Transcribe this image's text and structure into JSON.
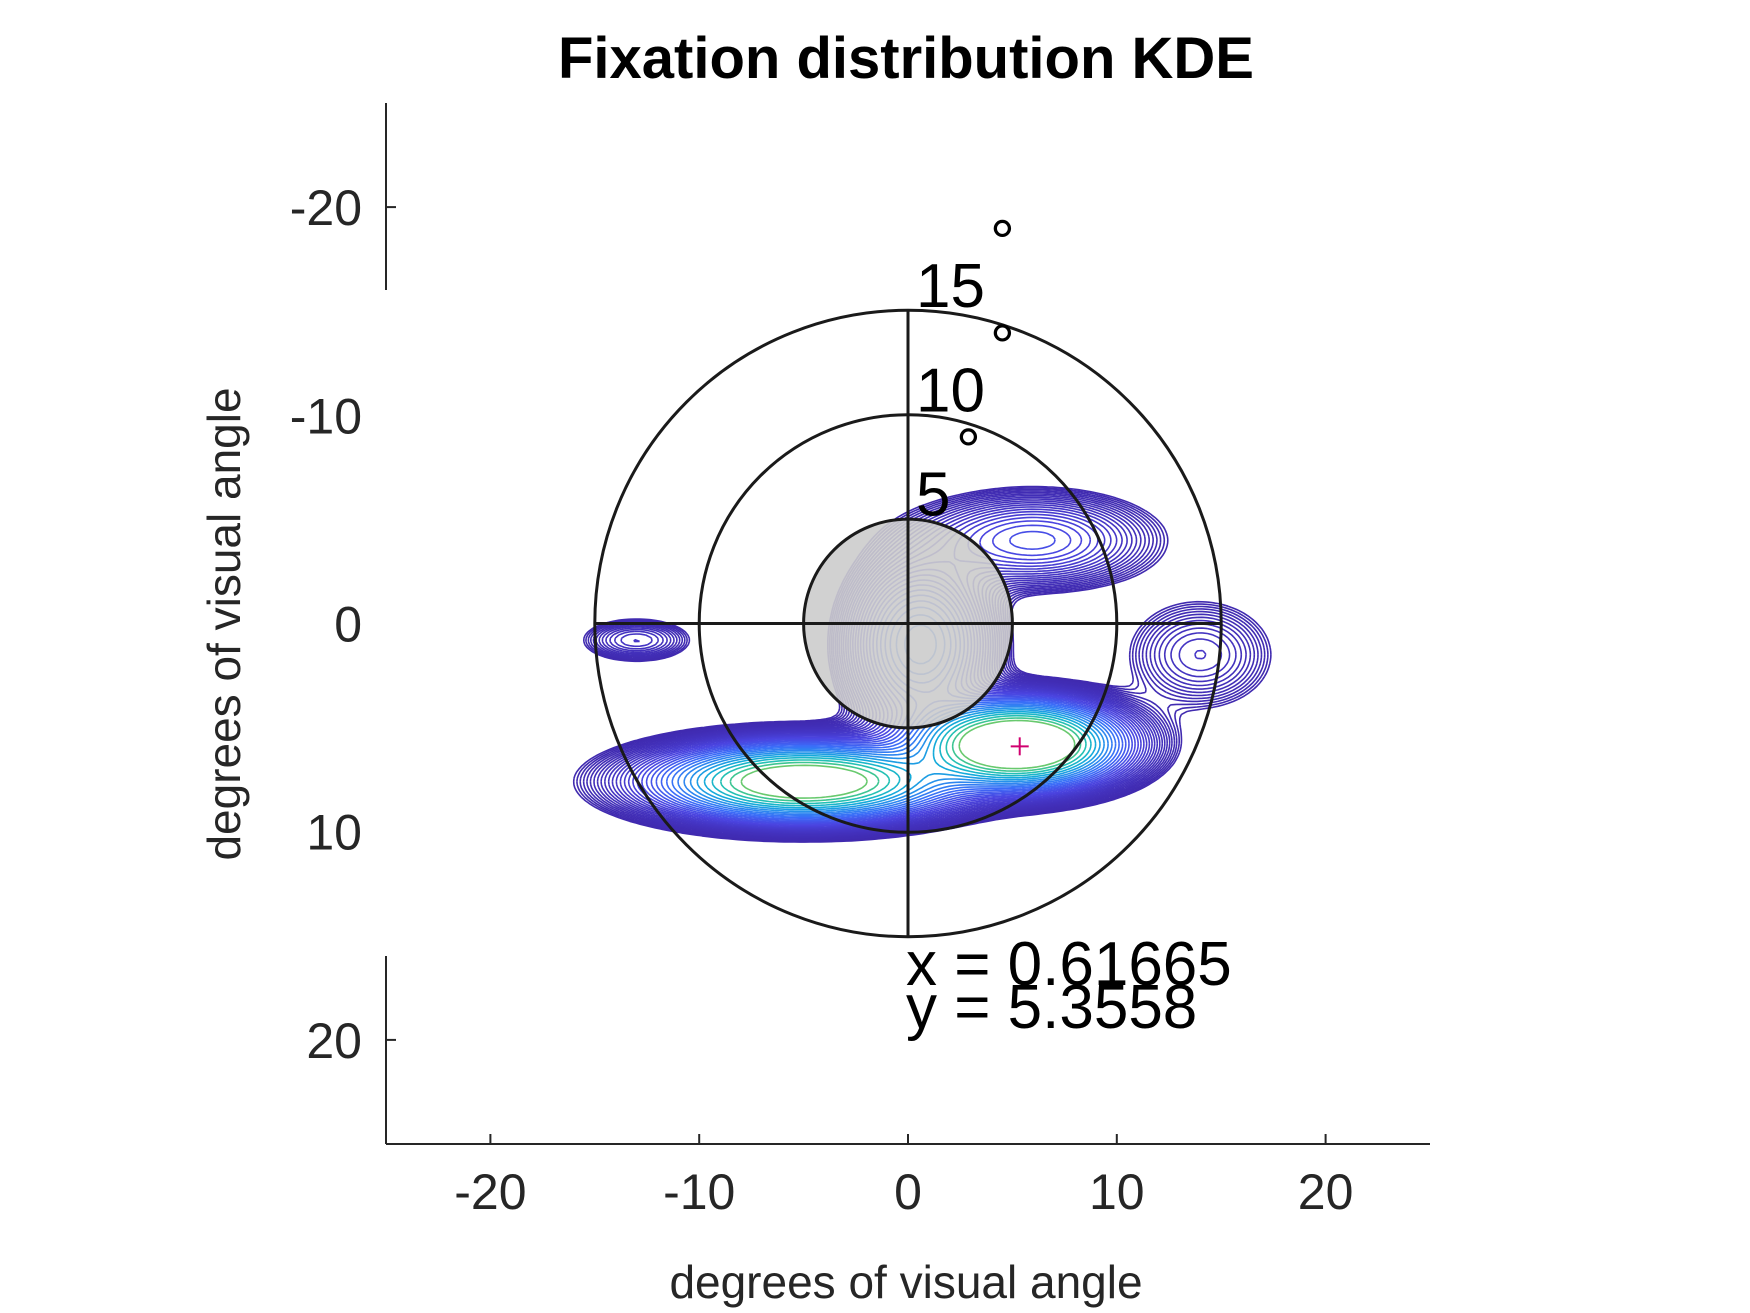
{
  "chart_data": {
    "type": "contour",
    "title": "Fixation distribution KDE",
    "xlabel": "degrees of visual angle",
    "ylabel": "degrees of visual angle",
    "xlim": [
      -25,
      25
    ],
    "ylim": [
      25,
      -25
    ],
    "x_ticks": [
      -20,
      -10,
      0,
      10,
      20
    ],
    "x_tick_labels": [
      "-20",
      "-10",
      "0",
      "10",
      "20"
    ],
    "y_ticks": [
      -20,
      -10,
      0,
      10,
      20
    ],
    "y_tick_labels": [
      "-20",
      "-10",
      "0",
      "10",
      "20"
    ],
    "rings": [
      {
        "radius": 5,
        "label": "5",
        "filled": true,
        "fill": "#cccccc"
      },
      {
        "radius": 10,
        "label": "10",
        "filled": false
      },
      {
        "radius": 15,
        "label": "15",
        "filled": false
      }
    ],
    "degree_symbol": "°",
    "kde_peaks": [
      {
        "x": 5.3,
        "y": 5.8,
        "sx": 2.6,
        "sy": 1.1,
        "weight": 1.0
      },
      {
        "x": -5.0,
        "y": 7.6,
        "sx": 3.8,
        "sy": 1.0,
        "weight": 0.8
      },
      {
        "x": 0.6,
        "y": 1.0,
        "sx": 1.8,
        "sy": 2.2,
        "weight": 0.25
      },
      {
        "x": 6.0,
        "y": -4.0,
        "sx": 3.0,
        "sy": 1.2,
        "weight": 0.12
      },
      {
        "x": -13.0,
        "y": 0.8,
        "sx": 1.5,
        "sy": 0.6,
        "weight": 0.05
      },
      {
        "x": 14.0,
        "y": 1.5,
        "sx": 2.0,
        "sy": 1.5,
        "weight": 0.05
      }
    ],
    "marker": {
      "x": 5.35,
      "y": 5.9
    },
    "readout": {
      "x_text": "x = 0.61665",
      "y_text": "y = 5.3558"
    },
    "colors": {
      "ring": "#1a1a1a",
      "axis": "#262626",
      "colormap": [
        "#3e26a8",
        "#4a44e0",
        "#3b6cf8",
        "#2a8cee",
        "#14aadb",
        "#1fbfb8",
        "#49c784",
        "#8fcc52",
        "#d0bf2d",
        "#f8b73d",
        "#f9d926",
        "#f9fb0e"
      ]
    }
  }
}
